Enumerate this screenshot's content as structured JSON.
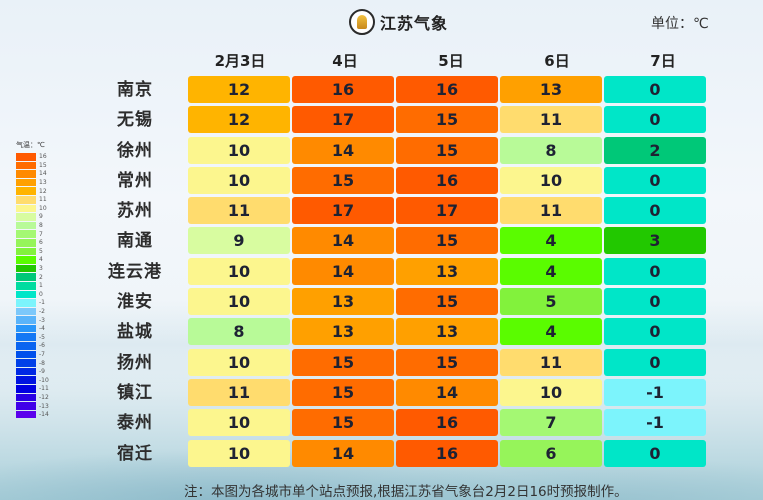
{
  "header": {
    "logo_text": "江苏气象",
    "unit": "单位：℃"
  },
  "legend": {
    "title": "气温：℃",
    "items": [
      {
        "label": "16",
        "color": "#ff5a00"
      },
      {
        "label": "15",
        "color": "#ff6c00"
      },
      {
        "label": "14",
        "color": "#ff8a00"
      },
      {
        "label": "13",
        "color": "#ffa000"
      },
      {
        "label": "12",
        "color": "#ffb400"
      },
      {
        "label": "11",
        "color": "#ffdc6e"
      },
      {
        "label": "10",
        "color": "#fcf68e"
      },
      {
        "label": "9",
        "color": "#d8fca0"
      },
      {
        "label": "8",
        "color": "#b8fa98"
      },
      {
        "label": "7",
        "color": "#a4f873"
      },
      {
        "label": "6",
        "color": "#96f45a"
      },
      {
        "label": "5",
        "color": "#82f23c"
      },
      {
        "label": "4",
        "color": "#5afc00"
      },
      {
        "label": "3",
        "color": "#22c800"
      },
      {
        "label": "2",
        "color": "#00c878"
      },
      {
        "label": "1",
        "color": "#00dca0"
      },
      {
        "label": "0",
        "color": "#00e6c8"
      },
      {
        "label": "-1",
        "color": "#7cf4fc"
      },
      {
        "label": "-2",
        "color": "#7cc8fa"
      },
      {
        "label": "-3",
        "color": "#5ab4fa"
      },
      {
        "label": "-4",
        "color": "#2896fa"
      },
      {
        "label": "-5",
        "color": "#1478f4"
      },
      {
        "label": "-6",
        "color": "#0a64f0"
      },
      {
        "label": "-7",
        "color": "#0050ec"
      },
      {
        "label": "-8",
        "color": "#0040e8"
      },
      {
        "label": "-9",
        "color": "#0028e4"
      },
      {
        "label": "-10",
        "color": "#0014e0"
      },
      {
        "label": "-11",
        "color": "#0000e0"
      },
      {
        "label": "-12",
        "color": "#2800e4"
      },
      {
        "label": "-13",
        "color": "#4000e8"
      },
      {
        "label": "-14",
        "color": "#5c00ec"
      }
    ]
  },
  "note": "注：本图为各城市单个站点预报,根据江苏省气象台2月2日16时预报制作。",
  "chart_data": {
    "type": "table",
    "title": "江苏气象",
    "unit": "℃",
    "columns": [
      "2月3日",
      "4日",
      "5日",
      "6日",
      "7日"
    ],
    "rows": [
      {
        "city": "南京",
        "values": [
          12,
          16,
          16,
          13,
          0
        ]
      },
      {
        "city": "无锡",
        "values": [
          12,
          17,
          15,
          11,
          0
        ]
      },
      {
        "city": "徐州",
        "values": [
          10,
          14,
          15,
          8,
          2
        ]
      },
      {
        "city": "常州",
        "values": [
          10,
          15,
          16,
          10,
          0
        ]
      },
      {
        "city": "苏州",
        "values": [
          11,
          17,
          17,
          11,
          0
        ]
      },
      {
        "city": "南通",
        "values": [
          9,
          14,
          15,
          4,
          3
        ]
      },
      {
        "city": "连云港",
        "values": [
          10,
          14,
          13,
          4,
          0
        ]
      },
      {
        "city": "淮安",
        "values": [
          10,
          13,
          15,
          5,
          0
        ]
      },
      {
        "city": "盐城",
        "values": [
          8,
          13,
          13,
          4,
          0
        ]
      },
      {
        "city": "扬州",
        "values": [
          10,
          15,
          15,
          11,
          0
        ]
      },
      {
        "city": "镇江",
        "values": [
          11,
          15,
          14,
          10,
          -1
        ]
      },
      {
        "city": "泰州",
        "values": [
          10,
          15,
          16,
          7,
          -1
        ]
      },
      {
        "city": "宿迁",
        "values": [
          10,
          14,
          16,
          6,
          0
        ]
      }
    ],
    "legend_range": [
      -14,
      16
    ]
  }
}
